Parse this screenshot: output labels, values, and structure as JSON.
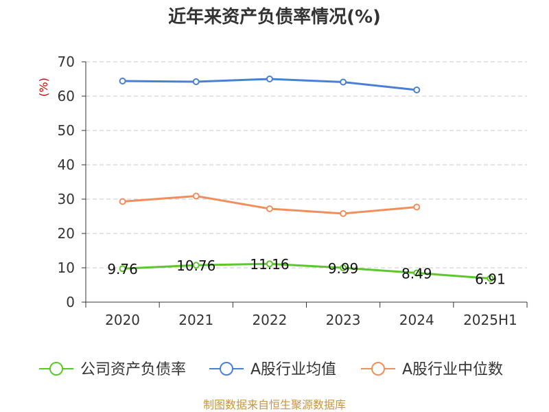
{
  "chart_data": {
    "type": "line",
    "title": "近年来资产负债率情况(%)",
    "ylabel": "(%)",
    "xlabel": "",
    "categories": [
      "2020",
      "2021",
      "2022",
      "2023",
      "2024",
      "2025H1"
    ],
    "ylim": [
      0,
      70
    ],
    "yticks": [
      0,
      10,
      20,
      30,
      40,
      50,
      60,
      70
    ],
    "grid": true,
    "legend_position": "bottom",
    "series": [
      {
        "name": "公司资产负债率",
        "color": "#5cc72d",
        "values": [
          9.76,
          10.76,
          11.16,
          9.99,
          8.49,
          6.91
        ],
        "labels": [
          "9.76",
          "10.76",
          "11.16",
          "9.99",
          "8.49",
          "6.91"
        ]
      },
      {
        "name": "A股行业均值",
        "color": "#4a7fd6",
        "values": [
          64.4,
          64.2,
          65.0,
          64.1,
          61.8,
          null
        ]
      },
      {
        "name": "A股行业中位数",
        "color": "#f28e5c",
        "values": [
          29.3,
          30.9,
          27.2,
          25.8,
          27.7,
          null
        ]
      }
    ],
    "source": "制图数据来自恒生聚源数据库"
  }
}
